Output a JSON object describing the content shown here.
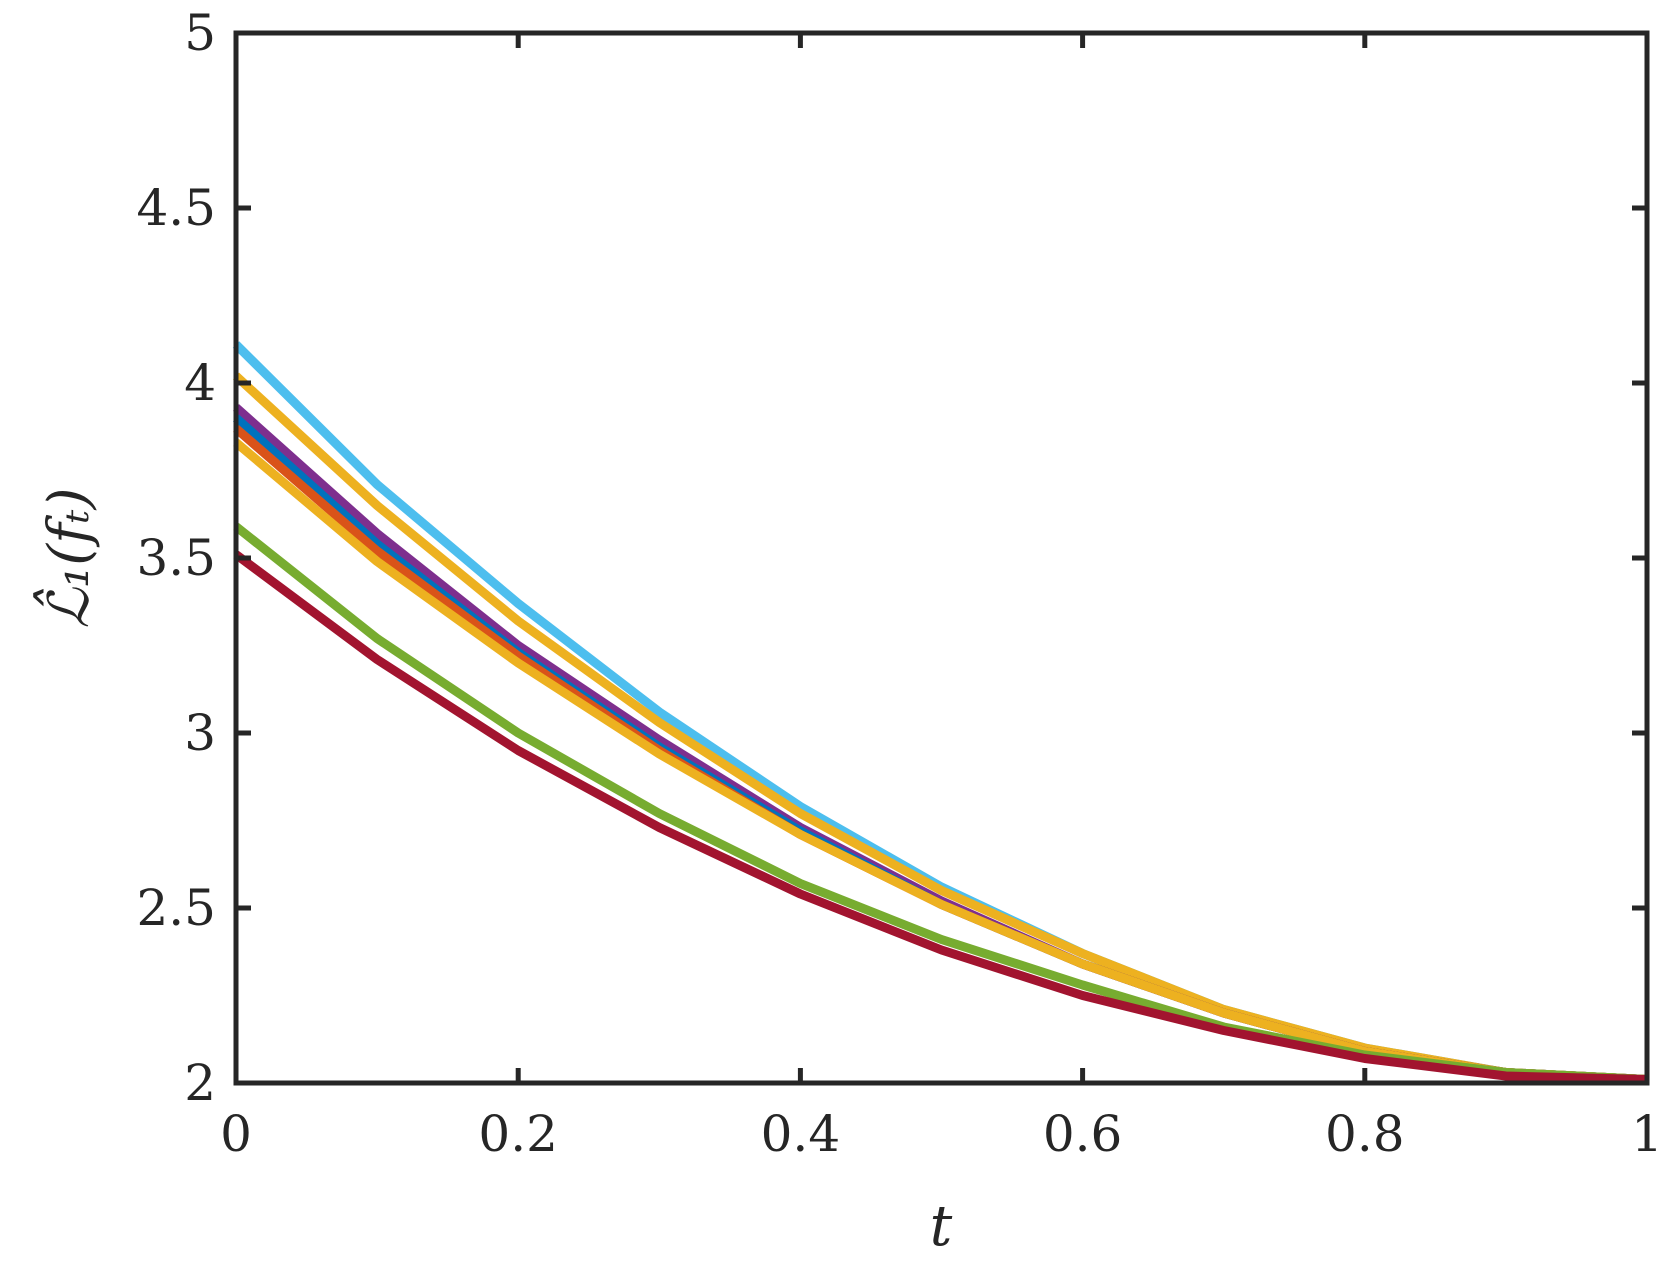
{
  "chart_data": {
    "type": "line",
    "xlabel": "t",
    "ylabel": "ℒ̂₁(fₜ)",
    "xlim": [
      0,
      1
    ],
    "ylim": [
      2,
      5
    ],
    "x_ticks": [
      "0",
      "0.2",
      "0.4",
      "0.6",
      "0.8",
      "1"
    ],
    "y_ticks": [
      "2",
      "2.5",
      "3",
      "3.5",
      "4",
      "4.5",
      "5"
    ],
    "grid": false,
    "legend": "none",
    "series": [
      {
        "color": "#4DBEEE",
        "x": [
          0,
          0.1,
          0.2,
          0.3,
          0.4,
          0.5,
          0.6,
          0.7,
          0.8,
          0.9,
          1.0
        ],
        "values": [
          4.11,
          3.71,
          3.37,
          3.06,
          2.79,
          2.56,
          2.37,
          2.21,
          2.1,
          2.03,
          2.01
        ]
      },
      {
        "color": "#EDB120",
        "x": [
          0,
          0.1,
          0.2,
          0.3,
          0.4,
          0.5,
          0.6,
          0.7,
          0.8,
          0.9,
          1.0
        ],
        "values": [
          4.02,
          3.65,
          3.32,
          3.03,
          2.77,
          2.55,
          2.37,
          2.21,
          2.1,
          2.03,
          2.01
        ]
      },
      {
        "color": "#7E2F8E",
        "x": [
          0,
          0.1,
          0.2,
          0.3,
          0.4,
          0.5,
          0.6,
          0.7,
          0.8,
          0.9,
          1.0
        ],
        "values": [
          3.93,
          3.57,
          3.25,
          2.98,
          2.73,
          2.52,
          2.34,
          2.2,
          2.09,
          2.03,
          2.01
        ]
      },
      {
        "color": "#0072BD",
        "x": [
          0,
          0.1,
          0.2,
          0.3,
          0.4,
          0.5,
          0.6,
          0.7,
          0.8,
          0.9,
          1.0
        ],
        "values": [
          3.9,
          3.54,
          3.23,
          2.96,
          2.72,
          2.51,
          2.34,
          2.2,
          2.09,
          2.03,
          2.01
        ]
      },
      {
        "color": "#D95319",
        "x": [
          0,
          0.1,
          0.2,
          0.3,
          0.4,
          0.5,
          0.6,
          0.7,
          0.8,
          0.9,
          1.0
        ],
        "values": [
          3.87,
          3.52,
          3.22,
          2.95,
          2.71,
          2.51,
          2.34,
          2.2,
          2.09,
          2.03,
          2.01
        ]
      },
      {
        "color": "#EDB120",
        "x": [
          0,
          0.1,
          0.2,
          0.3,
          0.4,
          0.5,
          0.6,
          0.7,
          0.8,
          0.9,
          1.0
        ],
        "values": [
          3.83,
          3.49,
          3.2,
          2.94,
          2.71,
          2.51,
          2.34,
          2.2,
          2.09,
          2.03,
          2.01
        ]
      },
      {
        "color": "#77AC30",
        "x": [
          0,
          0.1,
          0.2,
          0.3,
          0.4,
          0.5,
          0.6,
          0.7,
          0.8,
          0.9,
          1.0
        ],
        "values": [
          3.59,
          3.27,
          3.0,
          2.77,
          2.57,
          2.41,
          2.28,
          2.16,
          2.08,
          2.03,
          2.01
        ]
      },
      {
        "color": "#A2142F",
        "x": [
          0,
          0.1,
          0.2,
          0.3,
          0.4,
          0.5,
          0.6,
          0.7,
          0.8,
          0.9,
          1.0
        ],
        "values": [
          3.51,
          3.21,
          2.95,
          2.73,
          2.54,
          2.38,
          2.25,
          2.15,
          2.07,
          2.02,
          2.01
        ]
      }
    ]
  }
}
